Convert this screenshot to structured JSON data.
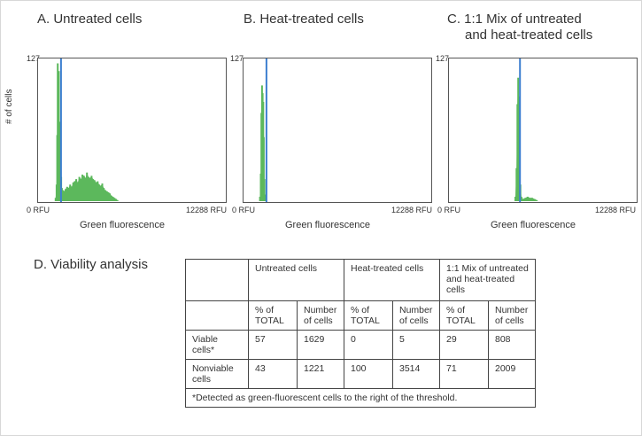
{
  "chart_data": [
    {
      "type": "histogram",
      "title": "A. Untreated cells",
      "xlabel": "Green fluorescence",
      "ylabel": "# of cells",
      "x_min_label": "0 RFU",
      "x_max_label": "12288 RFU",
      "y_max_label": "127",
      "xlim": [
        0,
        12288
      ],
      "ylim": [
        0,
        127
      ],
      "threshold": 1500,
      "color": "#5cb85c",
      "threshold_color": "#3d7fd0",
      "bins": [
        [
          1150,
          3
        ],
        [
          1210,
          15
        ],
        [
          1250,
          60
        ],
        [
          1285,
          125
        ],
        [
          1320,
          100
        ],
        [
          1355,
          118
        ],
        [
          1390,
          65
        ],
        [
          1430,
          72
        ],
        [
          1470,
          52
        ],
        [
          1510,
          22
        ],
        [
          1560,
          12
        ],
        [
          1620,
          10
        ],
        [
          1700,
          9
        ],
        [
          1800,
          11
        ],
        [
          1900,
          13
        ],
        [
          2000,
          12
        ],
        [
          2100,
          15
        ],
        [
          2200,
          13
        ],
        [
          2300,
          17
        ],
        [
          2400,
          18
        ],
        [
          2500,
          20
        ],
        [
          2600,
          17
        ],
        [
          2700,
          22
        ],
        [
          2800,
          20
        ],
        [
          2900,
          24
        ],
        [
          3000,
          23
        ],
        [
          3100,
          21
        ],
        [
          3200,
          26
        ],
        [
          3300,
          22
        ],
        [
          3400,
          21
        ],
        [
          3500,
          23
        ],
        [
          3600,
          20
        ],
        [
          3700,
          19
        ],
        [
          3800,
          17
        ],
        [
          3900,
          18
        ],
        [
          4000,
          15
        ],
        [
          4100,
          14
        ],
        [
          4200,
          16
        ],
        [
          4300,
          12
        ],
        [
          4400,
          10
        ],
        [
          4500,
          9
        ],
        [
          4600,
          8
        ],
        [
          4700,
          7
        ],
        [
          4800,
          5
        ],
        [
          4900,
          4
        ],
        [
          5000,
          3
        ],
        [
          5100,
          2
        ],
        [
          5200,
          1
        ]
      ]
    },
    {
      "type": "histogram",
      "title": "B. Heat-treated cells",
      "xlabel": "Green fluorescence",
      "x_min_label": "0 RFU",
      "x_max_label": "12288 RFU",
      "y_max_label": "127",
      "xlim": [
        0,
        12288
      ],
      "ylim": [
        0,
        127
      ],
      "threshold": 1500,
      "color": "#5cb85c",
      "threshold_color": "#3d7fd0",
      "bins": [
        [
          1080,
          4
        ],
        [
          1130,
          25
        ],
        [
          1170,
          80
        ],
        [
          1210,
          105
        ],
        [
          1250,
          98
        ],
        [
          1290,
          90
        ],
        [
          1330,
          58
        ],
        [
          1370,
          20
        ],
        [
          1410,
          6
        ]
      ]
    },
    {
      "type": "histogram",
      "title": "C. 1:1 Mix of untreated and heat-treated cells",
      "xlabel": "Green fluorescence",
      "x_min_label": "0 RFU",
      "x_max_label": "12288 RFU",
      "y_max_label": "127",
      "xlim": [
        0,
        12288
      ],
      "ylim": [
        0,
        127
      ],
      "threshold": 4650,
      "color": "#5cb85c",
      "threshold_color": "#3d7fd0",
      "bins": [
        [
          4350,
          4
        ],
        [
          4420,
          30
        ],
        [
          4480,
          88
        ],
        [
          4530,
          112
        ],
        [
          4580,
          95
        ],
        [
          4630,
          50
        ],
        [
          4680,
          15
        ],
        [
          4740,
          4
        ],
        [
          4850,
          2
        ],
        [
          5000,
          3
        ],
        [
          5150,
          4
        ],
        [
          5300,
          3
        ],
        [
          5450,
          3
        ],
        [
          5600,
          2
        ],
        [
          5750,
          1
        ]
      ]
    }
  ],
  "panels": {
    "a_title": "A. Untreated cells",
    "b_title": "B. Heat-treated cells",
    "c_title_1": "C. 1:1 Mix of untreated",
    "c_title_2": "and heat-treated cells",
    "y_axis_label": "# of cells",
    "x_axis_label": "Green fluorescence",
    "x_min": "0 RFU",
    "x_max": "12288 RFU",
    "y_max": "127"
  },
  "viability": {
    "title": "D. Viability analysis",
    "groups": [
      "Untreated cells",
      "Heat-treated cells",
      "1:1 Mix of untreated and heat-treated cells"
    ],
    "subheaders": [
      "% of TOTAL",
      "Number of cells"
    ],
    "rows": [
      {
        "label": "Viable cells*",
        "values": [
          "57",
          "1629",
          "0",
          "5",
          "29",
          "808"
        ]
      },
      {
        "label": "Nonviable cells",
        "values": [
          "43",
          "1221",
          "100",
          "3514",
          "71",
          "2009"
        ]
      }
    ],
    "footnote": "*Detected as green-fluorescent cells to the right of the threshold."
  }
}
